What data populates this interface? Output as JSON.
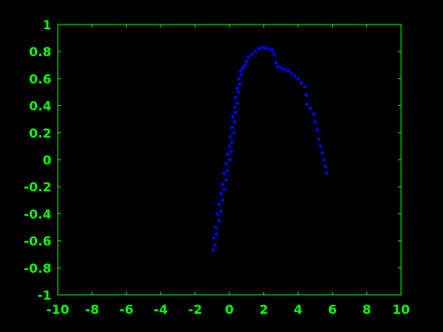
{
  "chart_data": {
    "type": "scatter",
    "title": "",
    "xlabel": "",
    "ylabel": "",
    "xlim": [
      -10,
      10
    ],
    "ylim": [
      -1,
      1
    ],
    "xticks": [
      -10,
      -8,
      -6,
      -4,
      -2,
      0,
      2,
      4,
      6,
      8,
      10
    ],
    "yticks": [
      -1,
      -0.8,
      -0.6,
      -0.4,
      -0.2,
      0,
      0.2,
      0.4,
      0.6,
      0.8,
      1
    ],
    "xtick_labels": [
      "-10",
      "-8",
      "-6",
      "-4",
      "-2",
      "0",
      "2",
      "4",
      "6",
      "8",
      "10"
    ],
    "ytick_labels": [
      "-1",
      "-0.8",
      "-0.6",
      "-0.4",
      "-0.2",
      "0",
      "0.2",
      "0.4",
      "0.6",
      "0.8",
      "1"
    ],
    "grid": false,
    "colors": {
      "background": "#000000",
      "axes": "#00ff00",
      "series": "#0000ff"
    },
    "series": [
      {
        "values": [
          [
            -0.95,
            -0.67
          ],
          [
            -0.85,
            -0.63
          ],
          [
            -0.9,
            -0.58
          ],
          [
            -0.75,
            -0.55
          ],
          [
            -0.8,
            -0.5
          ],
          [
            -0.6,
            -0.45
          ],
          [
            -0.7,
            -0.4
          ],
          [
            -0.5,
            -0.38
          ],
          [
            -0.6,
            -0.33
          ],
          [
            -0.4,
            -0.3
          ],
          [
            -0.5,
            -0.25
          ],
          [
            -0.3,
            -0.22
          ],
          [
            -0.4,
            -0.18
          ],
          [
            -0.2,
            -0.15
          ],
          [
            -0.3,
            -0.1
          ],
          [
            -0.1,
            -0.08
          ],
          [
            -0.2,
            -0.03
          ],
          [
            0.0,
            0.0
          ],
          [
            -0.1,
            0.04
          ],
          [
            0.1,
            0.06
          ],
          [
            0.0,
            0.1
          ],
          [
            0.15,
            0.13
          ],
          [
            0.05,
            0.17
          ],
          [
            0.25,
            0.2
          ],
          [
            0.15,
            0.24
          ],
          [
            0.3,
            0.28
          ],
          [
            0.2,
            0.32
          ],
          [
            0.35,
            0.35
          ],
          [
            0.3,
            0.39
          ],
          [
            0.45,
            0.42
          ],
          [
            0.35,
            0.46
          ],
          [
            0.5,
            0.5
          ],
          [
            0.45,
            0.53
          ],
          [
            0.6,
            0.56
          ],
          [
            0.55,
            0.6
          ],
          [
            0.7,
            0.63
          ],
          [
            0.65,
            0.66
          ],
          [
            0.8,
            0.68
          ],
          [
            0.9,
            0.7
          ],
          [
            1.0,
            0.73
          ],
          [
            1.1,
            0.76
          ],
          [
            1.3,
            0.78
          ],
          [
            1.5,
            0.8
          ],
          [
            1.7,
            0.82
          ],
          [
            1.9,
            0.83
          ],
          [
            2.1,
            0.83
          ],
          [
            2.3,
            0.82
          ],
          [
            2.5,
            0.81
          ],
          [
            2.6,
            0.78
          ],
          [
            2.7,
            0.72
          ],
          [
            2.8,
            0.69
          ],
          [
            3.0,
            0.68
          ],
          [
            3.2,
            0.67
          ],
          [
            3.4,
            0.66
          ],
          [
            3.6,
            0.64
          ],
          [
            3.8,
            0.62
          ],
          [
            4.0,
            0.6
          ],
          [
            4.2,
            0.57
          ],
          [
            4.4,
            0.54
          ],
          [
            4.45,
            0.48
          ],
          [
            4.5,
            0.41
          ],
          [
            4.7,
            0.38
          ],
          [
            4.9,
            0.34
          ],
          [
            5.0,
            0.28
          ],
          [
            5.1,
            0.22
          ],
          [
            5.2,
            0.15
          ],
          [
            5.3,
            0.1
          ],
          [
            5.4,
            0.05
          ],
          [
            5.5,
            0.0
          ],
          [
            5.6,
            -0.05
          ],
          [
            5.65,
            -0.1
          ]
        ]
      }
    ]
  }
}
